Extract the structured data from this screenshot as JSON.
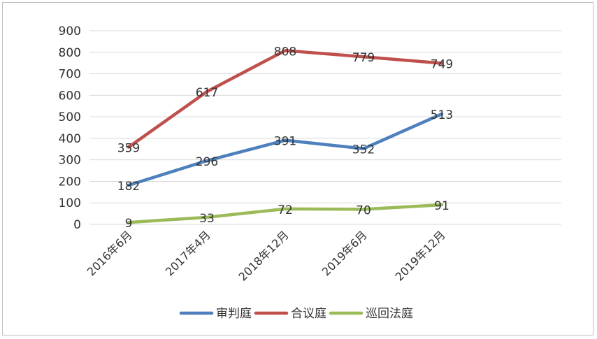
{
  "chart_data": {
    "type": "line",
    "title": "",
    "xlabel": "",
    "ylabel": "",
    "ylim": [
      0,
      900
    ],
    "yticks": [
      0,
      100,
      200,
      300,
      400,
      500,
      600,
      700,
      800,
      900
    ],
    "categories": [
      "2016年6月",
      "2017年4月",
      "2018年12月",
      "2019年6月",
      "2019年12月"
    ],
    "series": [
      {
        "name": "审判庭",
        "color": "#4e80bd",
        "values": [
          182,
          296,
          391,
          352,
          513
        ]
      },
      {
        "name": "合议庭",
        "color": "#c0504d",
        "values": [
          359,
          617,
          808,
          779,
          749
        ]
      },
      {
        "name": "巡回法庭",
        "color": "#9bbb59",
        "values": [
          9,
          33,
          72,
          70,
          91
        ]
      }
    ],
    "grid": true,
    "legend": "bottom-center"
  }
}
